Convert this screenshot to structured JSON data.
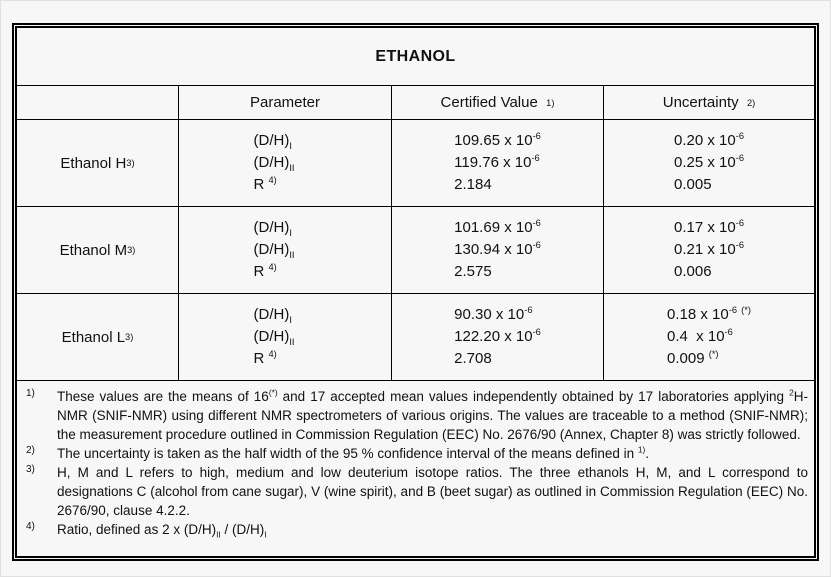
{
  "title": "ETHANOL",
  "table": {
    "headers": {
      "sample": "",
      "parameter": "Parameter",
      "certified_value": "Certified Value  ^{1)}",
      "uncertainty": "Uncertainty  ^{2)}"
    },
    "rows": [
      {
        "sample": "Ethanol H ^{3)}",
        "parameters": [
          "(D/H)_{I}",
          "(D/H)_{II}",
          "R ^{4)}"
        ],
        "certified_values": [
          "109.65 x 10^{-6}",
          "119.76 x 10^{-6}",
          "2.184"
        ],
        "uncertainties": [
          "0.20 x 10^{-6}",
          "0.25 x 10^{-6}",
          "0.005"
        ]
      },
      {
        "sample": "Ethanol M ^{3)}",
        "parameters": [
          "(D/H)_{I}",
          "(D/H)_{II}",
          "R ^{4)}"
        ],
        "certified_values": [
          "101.69 x 10^{-6}",
          "130.94 x 10^{-6}",
          "2.575"
        ],
        "uncertainties": [
          "0.17 x 10^{-6}",
          "0.21 x 10^{-6}",
          "0.006"
        ]
      },
      {
        "sample": "Ethanol L ^{3)}",
        "parameters": [
          "(D/H)_{I}",
          "(D/H)_{II}",
          "R ^{4)}"
        ],
        "certified_values": [
          "90.30 x 10^{-6}",
          "122.20 x 10^{-6}",
          "2.708"
        ],
        "uncertainties": [
          "0.18 x 10^{-6} ^{(*)}",
          "0.4  x 10^{-6}",
          "0.009 ^{(*)}"
        ]
      }
    ]
  },
  "footnotes": [
    {
      "marker": "1)",
      "text": "These values are the means of 16^{(*)} and 17 accepted mean values independently obtained by 17 laboratories applying ^{2}H-NMR (SNIF-NMR) using different NMR spectrometers of various origins. The values are traceable to a method (SNIF-NMR); the measurement procedure outlined in Commission Regulation (EEC) No. 2676/90 (Annex, Chapter 8) was strictly followed."
    },
    {
      "marker": "2)",
      "text": "The uncertainty is taken as the half width of the 95 % confidence interval of the means defined in ^{1)}."
    },
    {
      "marker": "3)",
      "text": "H, M and L refers to high, medium and low deuterium isotope ratios. The three ethanols H, M, and L correspond to designations C (alcohol from cane sugar), V (wine spirit), and B (beet sugar) as outlined in Commission Regulation (EEC) No. 2676/90, clause 4.2.2."
    },
    {
      "marker": "4)",
      "text": "Ratio, defined as 2 x (D/H)_{II} / (D/H)_{I}"
    }
  ],
  "colors": {
    "background": "#f7f7f7",
    "border": "#000000",
    "text": "#111111"
  }
}
